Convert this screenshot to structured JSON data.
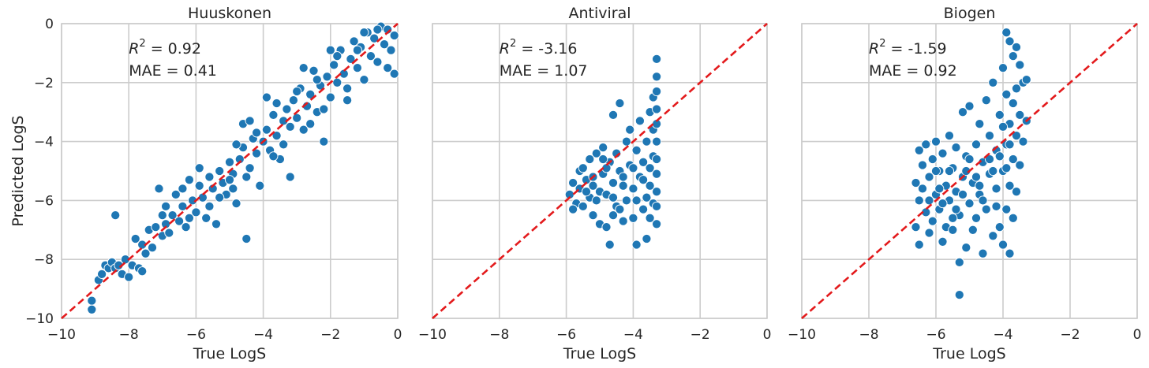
{
  "figure": {
    "shared_ylabel": "Predicted LogS",
    "colors": {
      "points": "#1f77b4",
      "identity_line": "#e31a1c",
      "grid": "#cccccc",
      "text": "#262626"
    }
  },
  "chart_data": [
    {
      "type": "scatter",
      "title": "Huuskonen",
      "xlabel": "True LogS",
      "ylabel": "Predicted LogS",
      "xlim": [
        -10,
        0
      ],
      "ylim": [
        -10,
        0
      ],
      "xticks": [
        "−10",
        "−8",
        "−6",
        "−4",
        "−2",
        "0"
      ],
      "yticks": [
        "0",
        "−2",
        "−4",
        "−6",
        "−8",
        "−10"
      ],
      "grid": true,
      "identity_line": true,
      "annotations": {
        "r2_label": "R",
        "r2_sup": "2",
        "r2_value": " = 0.92",
        "mae": "MAE = 0.41"
      },
      "points": [
        [
          -9.1,
          -9.4
        ],
        [
          -9.1,
          -9.7
        ],
        [
          -8.9,
          -8.7
        ],
        [
          -8.8,
          -8.5
        ],
        [
          -8.7,
          -8.2
        ],
        [
          -8.6,
          -8.3
        ],
        [
          -8.5,
          -8.1
        ],
        [
          -8.4,
          -6.5
        ],
        [
          -8.4,
          -8.3
        ],
        [
          -8.3,
          -8.2
        ],
        [
          -8.2,
          -8.5
        ],
        [
          -8.1,
          -8.0
        ],
        [
          -8.0,
          -8.6
        ],
        [
          -7.9,
          -8.2
        ],
        [
          -7.8,
          -7.3
        ],
        [
          -7.7,
          -8.3
        ],
        [
          -7.6,
          -7.5
        ],
        [
          -7.5,
          -7.8
        ],
        [
          -7.4,
          -7.0
        ],
        [
          -7.3,
          -7.6
        ],
        [
          -7.2,
          -6.9
        ],
        [
          -7.1,
          -5.6
        ],
        [
          -7.0,
          -7.2
        ],
        [
          -6.9,
          -6.8
        ],
        [
          -6.8,
          -7.1
        ],
        [
          -6.7,
          -6.5
        ],
        [
          -6.6,
          -5.8
        ],
        [
          -6.5,
          -6.7
        ],
        [
          -6.4,
          -6.2
        ],
        [
          -6.3,
          -6.9
        ],
        [
          -6.2,
          -5.3
        ],
        [
          -6.1,
          -6.0
        ],
        [
          -6.0,
          -6.4
        ],
        [
          -5.9,
          -5.5
        ],
        [
          -5.8,
          -5.9
        ],
        [
          -5.7,
          -6.6
        ],
        [
          -5.6,
          -5.2
        ],
        [
          -5.5,
          -5.6
        ],
        [
          -5.4,
          -6.8
        ],
        [
          -5.3,
          -5.0
        ],
        [
          -5.2,
          -5.4
        ],
        [
          -5.1,
          -5.8
        ],
        [
          -5.0,
          -4.7
        ],
        [
          -4.9,
          -5.1
        ],
        [
          -4.8,
          -6.1
        ],
        [
          -4.7,
          -4.6
        ],
        [
          -4.6,
          -4.2
        ],
        [
          -4.5,
          -7.3
        ],
        [
          -4.5,
          -5.2
        ],
        [
          -4.4,
          -4.9
        ],
        [
          -4.3,
          -3.9
        ],
        [
          -4.2,
          -4.4
        ],
        [
          -4.1,
          -5.5
        ],
        [
          -4.0,
          -4.0
        ],
        [
          -3.9,
          -3.6
        ],
        [
          -3.8,
          -4.3
        ],
        [
          -3.7,
          -3.1
        ],
        [
          -3.6,
          -3.8
        ],
        [
          -3.5,
          -4.6
        ],
        [
          -3.4,
          -3.3
        ],
        [
          -3.3,
          -2.9
        ],
        [
          -3.2,
          -5.2
        ],
        [
          -3.2,
          -3.5
        ],
        [
          -3.1,
          -2.6
        ],
        [
          -3.0,
          -3.2
        ],
        [
          -2.9,
          -2.2
        ],
        [
          -2.8,
          -3.6
        ],
        [
          -2.7,
          -2.8
        ],
        [
          -2.6,
          -2.4
        ],
        [
          -2.5,
          -1.6
        ],
        [
          -2.4,
          -3.0
        ],
        [
          -2.3,
          -2.1
        ],
        [
          -2.2,
          -4.0
        ],
        [
          -2.1,
          -1.8
        ],
        [
          -2.0,
          -2.5
        ],
        [
          -1.9,
          -1.4
        ],
        [
          -1.8,
          -2.0
        ],
        [
          -1.7,
          -0.9
        ],
        [
          -1.6,
          -1.7
        ],
        [
          -1.5,
          -2.2
        ],
        [
          -1.4,
          -1.2
        ],
        [
          -1.3,
          -0.6
        ],
        [
          -1.2,
          -1.5
        ],
        [
          -1.1,
          -0.8
        ],
        [
          -1.0,
          -1.9
        ],
        [
          -0.9,
          -0.3
        ],
        [
          -0.8,
          -1.1
        ],
        [
          -0.7,
          -0.5
        ],
        [
          -0.6,
          -1.3
        ],
        [
          -0.5,
          -0.1
        ],
        [
          -0.4,
          -0.7
        ],
        [
          -0.3,
          -0.2
        ],
        [
          -0.2,
          -0.9
        ],
        [
          -0.1,
          -0.4
        ],
        [
          -0.1,
          -1.7
        ],
        [
          -6.4,
          -5.6
        ],
        [
          -5.9,
          -4.9
        ],
        [
          -5.3,
          -5.9
        ],
        [
          -4.8,
          -4.1
        ],
        [
          -4.2,
          -3.7
        ],
        [
          -3.6,
          -2.7
        ],
        [
          -3.0,
          -2.3
        ],
        [
          -2.4,
          -1.9
        ],
        [
          -1.8,
          -1.1
        ],
        [
          -1.2,
          -0.9
        ],
        [
          -0.6,
          -0.2
        ],
        [
          -4.6,
          -3.4
        ],
        [
          -3.9,
          -2.5
        ],
        [
          -2.8,
          -1.5
        ],
        [
          -2.0,
          -0.9
        ],
        [
          -5.6,
          -6.2
        ],
        [
          -4.9,
          -5.6
        ],
        [
          -3.4,
          -4.1
        ],
        [
          -2.6,
          -3.4
        ],
        [
          -1.5,
          -2.6
        ],
        [
          -0.3,
          -1.5
        ],
        [
          -6.9,
          -6.2
        ],
        [
          -6.2,
          -6.6
        ],
        [
          -5.0,
          -5.3
        ],
        [
          -4.4,
          -3.3
        ],
        [
          -3.7,
          -4.5
        ],
        [
          -2.2,
          -2.9
        ],
        [
          -1.0,
          -0.3
        ],
        [
          -7.0,
          -6.5
        ],
        [
          -7.6,
          -8.4
        ]
      ]
    },
    {
      "type": "scatter",
      "title": "Antiviral",
      "xlabel": "True LogS",
      "xlim": [
        -10,
        0
      ],
      "ylim": [
        -10,
        0
      ],
      "xticks": [
        "−10",
        "−8",
        "−6",
        "−4",
        "−2",
        "0"
      ],
      "grid": true,
      "identity_line": true,
      "annotations": {
        "r2_label": "R",
        "r2_sup": "2",
        "r2_value": " = -3.16",
        "mae": "MAE = 1.07"
      },
      "points": [
        [
          -5.9,
          -5.8
        ],
        [
          -5.8,
          -5.4
        ],
        [
          -5.7,
          -6.1
        ],
        [
          -5.6,
          -5.0
        ],
        [
          -5.6,
          -5.6
        ],
        [
          -5.5,
          -4.9
        ],
        [
          -5.5,
          -6.2
        ],
        [
          -5.4,
          -5.3
        ],
        [
          -5.3,
          -5.9
        ],
        [
          -5.3,
          -4.6
        ],
        [
          -5.2,
          -5.2
        ],
        [
          -5.2,
          -6.5
        ],
        [
          -5.1,
          -4.4
        ],
        [
          -5.0,
          -5.7
        ],
        [
          -5.0,
          -6.8
        ],
        [
          -4.9,
          -5.1
        ],
        [
          -4.9,
          -4.2
        ],
        [
          -4.8,
          -5.8
        ],
        [
          -4.8,
          -6.9
        ],
        [
          -4.7,
          -7.5
        ],
        [
          -4.7,
          -4.7
        ],
        [
          -4.6,
          -3.1
        ],
        [
          -4.6,
          -5.4
        ],
        [
          -4.5,
          -6.2
        ],
        [
          -4.5,
          -4.4
        ],
        [
          -4.4,
          -5.0
        ],
        [
          -4.4,
          -2.7
        ],
        [
          -4.3,
          -6.7
        ],
        [
          -4.3,
          -5.5
        ],
        [
          -4.2,
          -4.0
        ],
        [
          -4.2,
          -6.0
        ],
        [
          -4.1,
          -4.8
        ],
        [
          -4.1,
          -3.6
        ],
        [
          -4.0,
          -5.6
        ],
        [
          -4.0,
          -6.6
        ],
        [
          -3.9,
          -4.3
        ],
        [
          -3.9,
          -7.5
        ],
        [
          -3.8,
          -5.2
        ],
        [
          -3.8,
          -3.3
        ],
        [
          -3.7,
          -6.3
        ],
        [
          -3.7,
          -4.7
        ],
        [
          -3.6,
          -5.9
        ],
        [
          -3.6,
          -4.0
        ],
        [
          -3.6,
          -7.3
        ],
        [
          -3.5,
          -5.5
        ],
        [
          -3.5,
          -3.0
        ],
        [
          -3.5,
          -6.6
        ],
        [
          -3.4,
          -2.5
        ],
        [
          -3.4,
          -4.5
        ],
        [
          -3.4,
          -3.6
        ],
        [
          -3.4,
          -6.1
        ],
        [
          -3.3,
          -1.2
        ],
        [
          -3.3,
          -1.8
        ],
        [
          -3.3,
          -2.3
        ],
        [
          -3.3,
          -2.9
        ],
        [
          -3.3,
          -3.4
        ],
        [
          -3.3,
          -4.0
        ],
        [
          -3.3,
          -4.6
        ],
        [
          -3.3,
          -5.1
        ],
        [
          -3.3,
          -5.7
        ],
        [
          -3.3,
          -6.2
        ],
        [
          -3.3,
          -6.8
        ],
        [
          -5.4,
          -5.7
        ],
        [
          -5.1,
          -6.0
        ],
        [
          -4.8,
          -4.9
        ],
        [
          -4.6,
          -5.9
        ],
        [
          -4.3,
          -5.2
        ],
        [
          -4.0,
          -4.9
        ],
        [
          -3.7,
          -5.3
        ],
        [
          -3.5,
          -4.9
        ],
        [
          -5.8,
          -6.3
        ],
        [
          -4.4,
          -6.3
        ],
        [
          -3.9,
          -6.0
        ],
        [
          -5.2,
          -5.5
        ],
        [
          -4.9,
          -4.6
        ],
        [
          -4.6,
          -6.5
        ]
      ]
    },
    {
      "type": "scatter",
      "title": "Biogen",
      "xlabel": "True LogS",
      "xlim": [
        -10,
        0
      ],
      "ylim": [
        -10,
        0
      ],
      "xticks": [
        "−10",
        "−8",
        "−6",
        "−4",
        "−2",
        "0"
      ],
      "grid": true,
      "identity_line": true,
      "annotations": {
        "r2_label": "R",
        "r2_sup": "2",
        "r2_value": " = -1.59",
        "mae": "MAE = 0.92"
      },
      "points": [
        [
          -6.6,
          -6.9
        ],
        [
          -6.6,
          -5.4
        ],
        [
          -6.5,
          -4.3
        ],
        [
          -6.5,
          -6.0
        ],
        [
          -6.5,
          -7.5
        ],
        [
          -6.4,
          -4.8
        ],
        [
          -6.4,
          -5.6
        ],
        [
          -6.3,
          -6.4
        ],
        [
          -6.3,
          -4.1
        ],
        [
          -6.2,
          -5.2
        ],
        [
          -6.2,
          -7.1
        ],
        [
          -6.1,
          -4.6
        ],
        [
          -6.1,
          -6.7
        ],
        [
          -6.0,
          -5.8
        ],
        [
          -6.0,
          -4.0
        ],
        [
          -5.9,
          -6.3
        ],
        [
          -5.9,
          -5.0
        ],
        [
          -5.8,
          -7.4
        ],
        [
          -5.8,
          -4.4
        ],
        [
          -5.7,
          -5.5
        ],
        [
          -5.7,
          -6.9
        ],
        [
          -5.6,
          -3.8
        ],
        [
          -5.6,
          -6.0
        ],
        [
          -5.5,
          -4.9
        ],
        [
          -5.5,
          -7.0
        ],
        [
          -5.4,
          -5.7
        ],
        [
          -5.4,
          -4.2
        ],
        [
          -5.3,
          -6.5
        ],
        [
          -5.3,
          -8.1
        ],
        [
          -5.3,
          -9.2
        ],
        [
          -5.2,
          -3.0
        ],
        [
          -5.2,
          -5.2
        ],
        [
          -5.1,
          -7.6
        ],
        [
          -5.1,
          -4.5
        ],
        [
          -5.0,
          -6.1
        ],
        [
          -5.0,
          -2.8
        ],
        [
          -4.9,
          -5.4
        ],
        [
          -4.9,
          -7.0
        ],
        [
          -4.8,
          -4.1
        ],
        [
          -4.8,
          -6.6
        ],
        [
          -4.7,
          -3.4
        ],
        [
          -4.7,
          -5.8
        ],
        [
          -4.6,
          -7.8
        ],
        [
          -4.6,
          -4.7
        ],
        [
          -4.5,
          -2.6
        ],
        [
          -4.5,
          -6.3
        ],
        [
          -4.4,
          -5.1
        ],
        [
          -4.4,
          -3.8
        ],
        [
          -4.3,
          -7.2
        ],
        [
          -4.3,
          -2.0
        ],
        [
          -4.2,
          -5.6
        ],
        [
          -4.2,
          -4.3
        ],
        [
          -4.1,
          -6.9
        ],
        [
          -4.1,
          -3.1
        ],
        [
          -4.0,
          -1.5
        ],
        [
          -4.0,
          -5.0
        ],
        [
          -4.0,
          -7.5
        ],
        [
          -3.9,
          -2.4
        ],
        [
          -3.9,
          -0.3
        ],
        [
          -3.9,
          -4.1
        ],
        [
          -3.9,
          -6.3
        ],
        [
          -3.8,
          -0.6
        ],
        [
          -3.8,
          -3.4
        ],
        [
          -3.8,
          -5.5
        ],
        [
          -3.8,
          -7.8
        ],
        [
          -3.7,
          -1.1
        ],
        [
          -3.7,
          -2.7
        ],
        [
          -3.7,
          -4.6
        ],
        [
          -3.7,
          -6.6
        ],
        [
          -3.6,
          -0.8
        ],
        [
          -3.6,
          -2.2
        ],
        [
          -3.6,
          -3.8
        ],
        [
          -3.6,
          -5.7
        ],
        [
          -3.5,
          -1.4
        ],
        [
          -3.5,
          -3.1
        ],
        [
          -3.5,
          -4.8
        ],
        [
          -3.4,
          -2.0
        ],
        [
          -3.4,
          -4.0
        ],
        [
          -3.3,
          -1.9
        ],
        [
          -3.3,
          -3.3
        ],
        [
          -6.0,
          -5.0
        ],
        [
          -5.8,
          -6.1
        ],
        [
          -5.6,
          -5.0
        ],
        [
          -5.4,
          -6.3
        ],
        [
          -5.2,
          -5.8
        ],
        [
          -5.0,
          -4.6
        ],
        [
          -4.8,
          -5.2
        ],
        [
          -4.6,
          -6.0
        ],
        [
          -4.4,
          -4.6
        ],
        [
          -4.2,
          -6.2
        ],
        [
          -4.0,
          -3.5
        ],
        [
          -3.8,
          -4.1
        ],
        [
          -6.2,
          -6.0
        ],
        [
          -5.9,
          -5.6
        ],
        [
          -5.5,
          -6.6
        ],
        [
          -5.1,
          -5.0
        ],
        [
          -4.7,
          -5.5
        ],
        [
          -4.3,
          -5.0
        ],
        [
          -4.1,
          -4.5
        ],
        [
          -3.9,
          -4.9
        ]
      ]
    }
  ]
}
